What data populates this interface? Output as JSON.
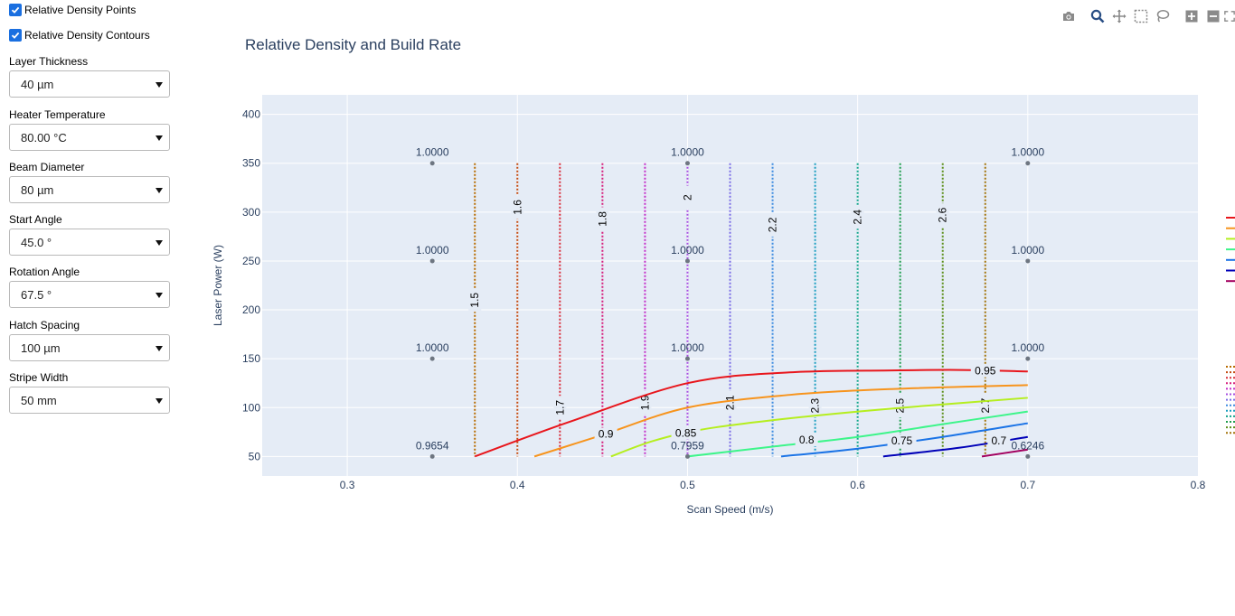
{
  "sidebar": {
    "checkboxes": [
      {
        "label": "Relative Density Points",
        "checked": true
      },
      {
        "label": "Relative Density Contours",
        "checked": true
      }
    ],
    "fields": [
      {
        "label": "Layer Thickness",
        "value": "40 µm"
      },
      {
        "label": "Heater Temperature",
        "value": "80.00 °C"
      },
      {
        "label": "Beam Diameter",
        "value": "80 µm"
      },
      {
        "label": "Start Angle",
        "value": "45.0 °"
      },
      {
        "label": "Rotation Angle",
        "value": "67.5 °"
      },
      {
        "label": "Hatch Spacing",
        "value": "100 µm"
      },
      {
        "label": "Stripe Width",
        "value": "50 mm"
      }
    ]
  },
  "modebar": {
    "icons": [
      "camera-icon",
      "zoom-icon",
      "pan-icon",
      "box-select-icon",
      "lasso-icon",
      "zoom-in-icon",
      "zoom-out-icon",
      "autoscale-icon"
    ]
  },
  "chart_data": {
    "type": "scatter",
    "title": "Relative Density and Build Rate",
    "xlabel": "Scan Speed (m/s)",
    "ylabel": "Laser Power (W)",
    "xlim": [
      0.25,
      0.8
    ],
    "ylim": [
      30,
      420
    ],
    "xticks": [
      0.3,
      0.4,
      0.5,
      0.6,
      0.7,
      0.8
    ],
    "xtick_labels": [
      "0.3",
      "0.4",
      "0.5",
      "0.6",
      "0.7",
      "0.8"
    ],
    "yticks": [
      50,
      100,
      150,
      200,
      250,
      300,
      350,
      400
    ],
    "ytick_labels": [
      "50",
      "100",
      "150",
      "200",
      "250",
      "300",
      "350",
      "400"
    ],
    "grid": true,
    "plot_bg": "#e5ecf6",
    "points": [
      {
        "x": 0.35,
        "y": 350,
        "label": "1.0000"
      },
      {
        "x": 0.5,
        "y": 350,
        "label": "1.0000"
      },
      {
        "x": 0.7,
        "y": 350,
        "label": "1.0000"
      },
      {
        "x": 0.35,
        "y": 250,
        "label": "1.0000"
      },
      {
        "x": 0.5,
        "y": 250,
        "label": "1.0000"
      },
      {
        "x": 0.7,
        "y": 250,
        "label": "1.0000"
      },
      {
        "x": 0.35,
        "y": 150,
        "label": "1.0000"
      },
      {
        "x": 0.5,
        "y": 150,
        "label": "1.0000"
      },
      {
        "x": 0.7,
        "y": 150,
        "label": "1.0000"
      },
      {
        "x": 0.35,
        "y": 50,
        "label": "0.9654"
      },
      {
        "x": 0.5,
        "y": 50,
        "label": "0.7959"
      },
      {
        "x": 0.7,
        "y": 50,
        "label": "0.6246"
      }
    ],
    "density_contours": [
      {
        "level": "0.95",
        "color": "#e8161c",
        "points": [
          [
            0.375,
            50
          ],
          [
            0.43,
            85
          ],
          [
            0.5,
            125
          ],
          [
            0.56,
            136
          ],
          [
            0.62,
            138
          ],
          [
            0.66,
            138.5
          ],
          [
            0.7,
            137
          ]
        ],
        "label_at": [
          0.675,
          137.5
        ]
      },
      {
        "level": "0.9",
        "color": "#f7941d",
        "points": [
          [
            0.41,
            50
          ],
          [
            0.45,
            72
          ],
          [
            0.5,
            100
          ],
          [
            0.56,
            113
          ],
          [
            0.62,
            119
          ],
          [
            0.7,
            123
          ]
        ],
        "label_at": [
          0.452,
          73
        ]
      },
      {
        "level": "0.85",
        "color": "#b5ee1f",
        "points": [
          [
            0.455,
            50
          ],
          [
            0.48,
            66
          ],
          [
            0.51,
            78
          ],
          [
            0.56,
            89
          ],
          [
            0.62,
            99
          ],
          [
            0.7,
            110
          ]
        ],
        "label_at": [
          0.499,
          74
        ]
      },
      {
        "level": "0.8",
        "color": "#3df58a",
        "points": [
          [
            0.5,
            50
          ],
          [
            0.55,
            60
          ],
          [
            0.6,
            70
          ],
          [
            0.65,
            83
          ],
          [
            0.7,
            96
          ]
        ],
        "label_at": [
          0.57,
          67
        ]
      },
      {
        "level": "0.75",
        "color": "#1a73e6",
        "points": [
          [
            0.555,
            50
          ],
          [
            0.6,
            58
          ],
          [
            0.65,
            70
          ],
          [
            0.7,
            84
          ]
        ],
        "label_at": [
          0.626,
          66
        ]
      },
      {
        "level": "0.7",
        "color": "#0000b8",
        "points": [
          [
            0.615,
            50
          ],
          [
            0.66,
            59
          ],
          [
            0.7,
            70
          ]
        ],
        "label_at": [
          0.683,
          66
        ]
      },
      {
        "level": "",
        "color": "#a3005f",
        "points": [
          [
            0.673,
            50
          ],
          [
            0.7,
            57
          ]
        ],
        "label_at": null
      }
    ],
    "rate_contours": [
      {
        "x": 0.375,
        "label": "1.5",
        "color": "#b86c00",
        "label_y": 210
      },
      {
        "x": 0.4,
        "label": "1.6",
        "color": "#c2490f",
        "label_y": 305
      },
      {
        "x": 0.425,
        "label": "1.7",
        "color": "#d92e3b",
        "label_y": 100
      },
      {
        "x": 0.45,
        "label": "1.8",
        "color": "#d61f7c",
        "label_y": 293
      },
      {
        "x": 0.475,
        "label": "1.9",
        "color": "#c42fc9",
        "label_y": 105
      },
      {
        "x": 0.5,
        "label": "2",
        "color": "#a54ee0",
        "label_y": 315
      },
      {
        "x": 0.525,
        "label": "2.1",
        "color": "#7a6ce6",
        "label_y": 105
      },
      {
        "x": 0.55,
        "label": "2.2",
        "color": "#3d8be0",
        "label_y": 287
      },
      {
        "x": 0.575,
        "label": "2.3",
        "color": "#1a9dbf",
        "label_y": 102
      },
      {
        "x": 0.6,
        "label": "2.4",
        "color": "#12a38c",
        "label_y": 295
      },
      {
        "x": 0.625,
        "label": "2.5",
        "color": "#1e9d4d",
        "label_y": 102
      },
      {
        "x": 0.65,
        "label": "2.6",
        "color": "#5c8f1a",
        "label_y": 297
      },
      {
        "x": 0.675,
        "label": "2.7",
        "color": "#a3740a",
        "label_y": 102
      }
    ],
    "rate_contour_ymax": 350
  }
}
